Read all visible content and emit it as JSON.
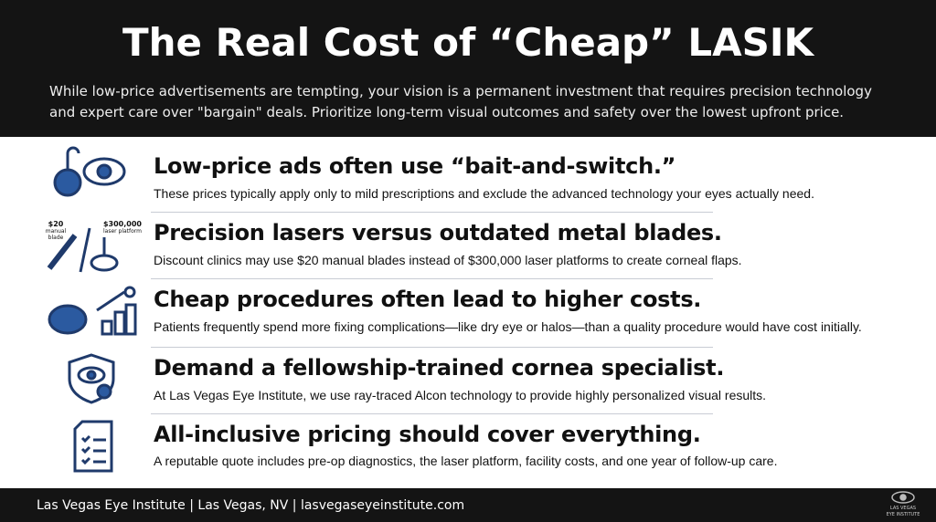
{
  "header": {
    "title": "The Real Cost of “Cheap” LASIK",
    "subtitle_lines": [
      "While low-price advertisements are tempting, your vision is a permanent investment that requires precision technology",
      "and expert care over \"bargain\" deals. Prioritize long-term visual outcomes and safety over the lowest upfront price."
    ]
  },
  "items": [
    {
      "heading": "Low-price ads often use “bait-and-switch.”",
      "body": "These prices typically apply only to mild prescriptions and exclude the advanced technology your eyes actually need."
    },
    {
      "heading": "Precision lasers versus outdated metal blades.",
      "body": "Discount clinics may use $20 manual blades instead of $300,000 laser platforms to create corneal flaps.",
      "icon_labels": {
        "left_price": "$20",
        "left_caption": "manual blade",
        "right_price": "$300,000",
        "right_caption": "laser platform"
      }
    },
    {
      "heading": "Cheap procedures often lead to higher costs.",
      "body": "Patients frequently spend more fixing complications—like dry eye or halos—than a quality procedure would have cost initially."
    },
    {
      "heading": "Demand a fellowship-trained cornea specialist.",
      "body": "At Las Vegas Eye Institute, we use ray-traced Alcon technology to provide highly personalized visual results."
    },
    {
      "heading": "All-inclusive pricing should cover everything.",
      "body": "A reputable quote includes pre-op diagnostics, the laser platform, facility costs, and one year of follow-up care."
    }
  ],
  "footer": {
    "text": "Las Vegas Eye Institute | Las Vegas, NV | lasvegaseyeinstitute.com",
    "logo_lines": [
      "LAS VEGAS",
      "EYE INSTITUTE"
    ]
  }
}
